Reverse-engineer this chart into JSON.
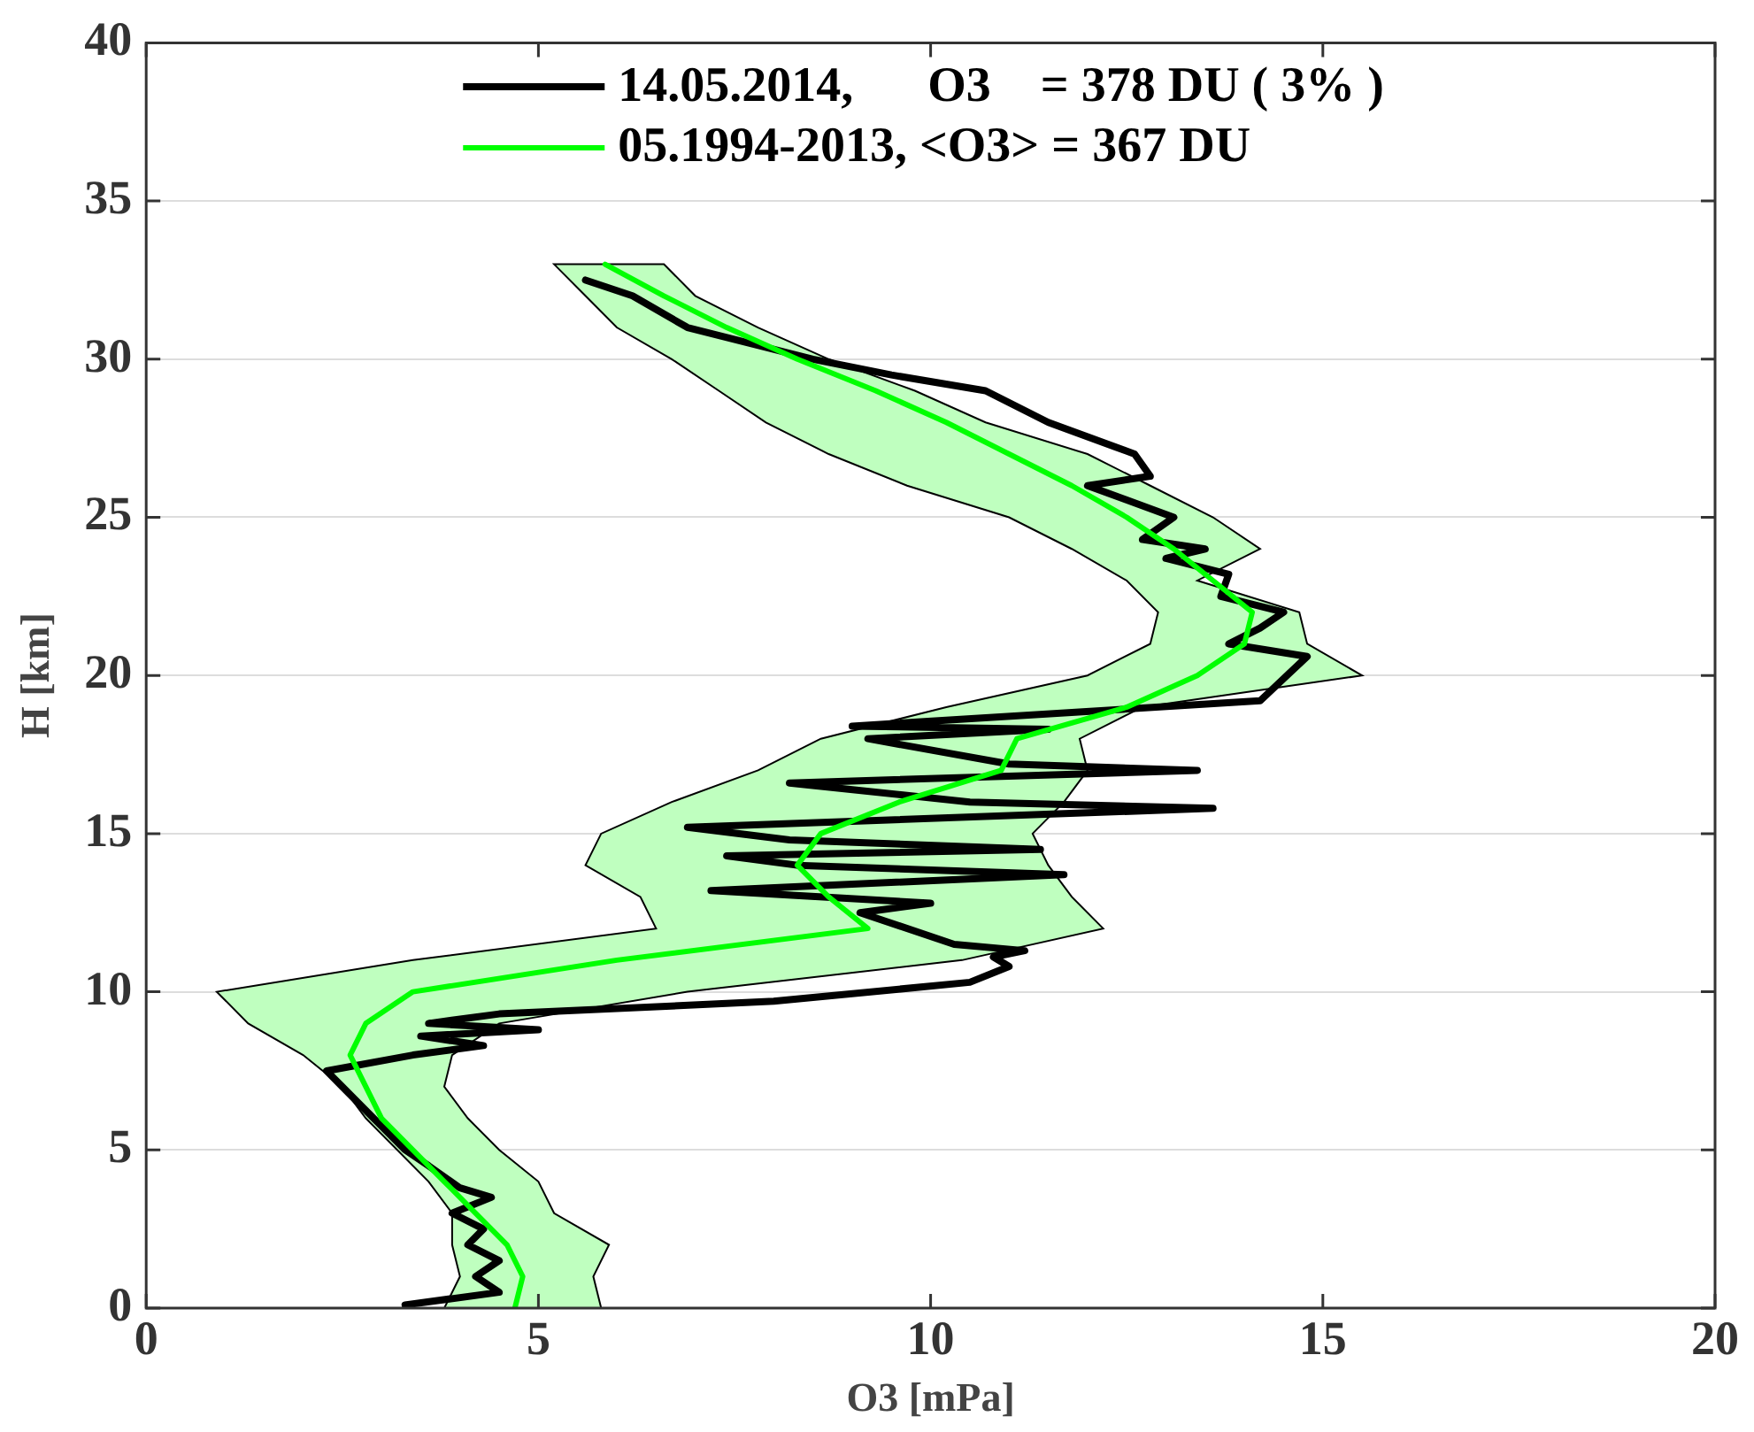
{
  "chart_data": {
    "type": "line",
    "orientation": "horizontal",
    "xlabel": "O3 [mPa]",
    "ylabel": "H [km]",
    "xlim": [
      0,
      20
    ],
    "ylim": [
      0,
      40
    ],
    "xticks": [
      0,
      5,
      10,
      15,
      20
    ],
    "yticks": [
      0,
      5,
      10,
      15,
      20,
      25,
      30,
      35,
      40
    ],
    "grid": "y",
    "legend": "top",
    "marker": "none",
    "line_style": "solid",
    "series": [
      {
        "name": "14.05.2014,      O3    = 378 DU ( 3% )",
        "color": "#000000",
        "x": [
          0.1,
          0.5,
          1,
          1.5,
          2,
          2.5,
          3,
          3.5,
          3.8,
          4.5,
          5,
          6,
          7,
          7.5,
          8,
          8.3,
          8.6,
          8.8,
          9.0,
          9.3,
          9.7,
          10.3,
          10.8,
          11.1,
          11.3,
          11.5,
          12.5,
          12.8,
          13.2,
          13.7,
          14.0,
          14.3,
          14.5,
          14.8,
          15.2,
          15.8,
          16.0,
          16.6,
          17.0,
          17.2,
          18.0,
          18.3,
          18.4,
          19.2,
          20.6,
          21.0,
          21.5,
          22.0,
          22.5,
          23.2,
          23.7,
          24.0,
          24.3,
          25.0,
          26.0,
          26.3,
          27.0,
          28.0,
          29.0,
          29.5,
          30.0,
          31.0,
          32.0,
          32.5
        ],
        "values": [
          3.3,
          4.5,
          4.2,
          4.5,
          4.1,
          4.3,
          3.9,
          4.4,
          4.0,
          3.6,
          3.3,
          2.9,
          2.5,
          2.3,
          3.4,
          4.3,
          3.5,
          5.0,
          3.6,
          4.5,
          8.0,
          10.5,
          11.0,
          10.8,
          11.2,
          10.3,
          9.1,
          10.0,
          7.2,
          11.7,
          8.3,
          7.4,
          11.4,
          8.2,
          6.9,
          13.6,
          10.5,
          8.2,
          13.4,
          11.0,
          9.2,
          11.5,
          9.0,
          14.2,
          14.8,
          13.8,
          14.2,
          14.5,
          13.7,
          13.8,
          13.0,
          13.5,
          12.7,
          13.1,
          12.0,
          12.8,
          12.6,
          11.5,
          10.7,
          9.5,
          8.5,
          6.9,
          6.2,
          5.6
        ]
      },
      {
        "name": "05.1994-2013, <O3> = 367 DU",
        "color": "#00ff00",
        "x": [
          0,
          1,
          2,
          3,
          4,
          5,
          6,
          7,
          8,
          9,
          10,
          11,
          12,
          13,
          14,
          15,
          16,
          17,
          18,
          19,
          20,
          21,
          22,
          23,
          24,
          25,
          26,
          27,
          28,
          29,
          30,
          31,
          32,
          33
        ],
        "values": [
          4.7,
          4.8,
          4.6,
          4.2,
          3.8,
          3.4,
          3.0,
          2.8,
          2.6,
          2.8,
          3.4,
          6.0,
          9.2,
          8.7,
          8.3,
          8.6,
          9.6,
          10.9,
          11.1,
          12.5,
          13.4,
          14.0,
          14.1,
          13.6,
          13.1,
          12.5,
          11.8,
          11.0,
          10.2,
          9.3,
          8.3,
          7.4,
          6.6,
          5.85
        ],
        "lower": [
          3.8,
          4.0,
          3.9,
          3.9,
          3.6,
          3.2,
          2.8,
          2.5,
          2.0,
          1.3,
          0.9,
          3.4,
          6.5,
          6.3,
          5.6,
          5.8,
          6.7,
          7.8,
          8.6,
          10.2,
          12.0,
          12.8,
          12.9,
          12.5,
          11.8,
          11.0,
          9.7,
          8.7,
          7.9,
          7.3,
          6.7,
          6.0,
          5.6,
          5.2
        ],
        "upper": [
          5.8,
          5.7,
          5.9,
          5.2,
          5.0,
          4.5,
          4.1,
          3.8,
          3.9,
          4.5,
          6.9,
          10.4,
          12.2,
          11.8,
          11.5,
          11.3,
          11.7,
          12.0,
          11.9,
          12.7,
          15.5,
          14.8,
          14.7,
          13.4,
          14.2,
          13.6,
          12.8,
          12.0,
          10.7,
          9.8,
          8.7,
          7.8,
          7.0,
          6.6
        ]
      }
    ]
  }
}
